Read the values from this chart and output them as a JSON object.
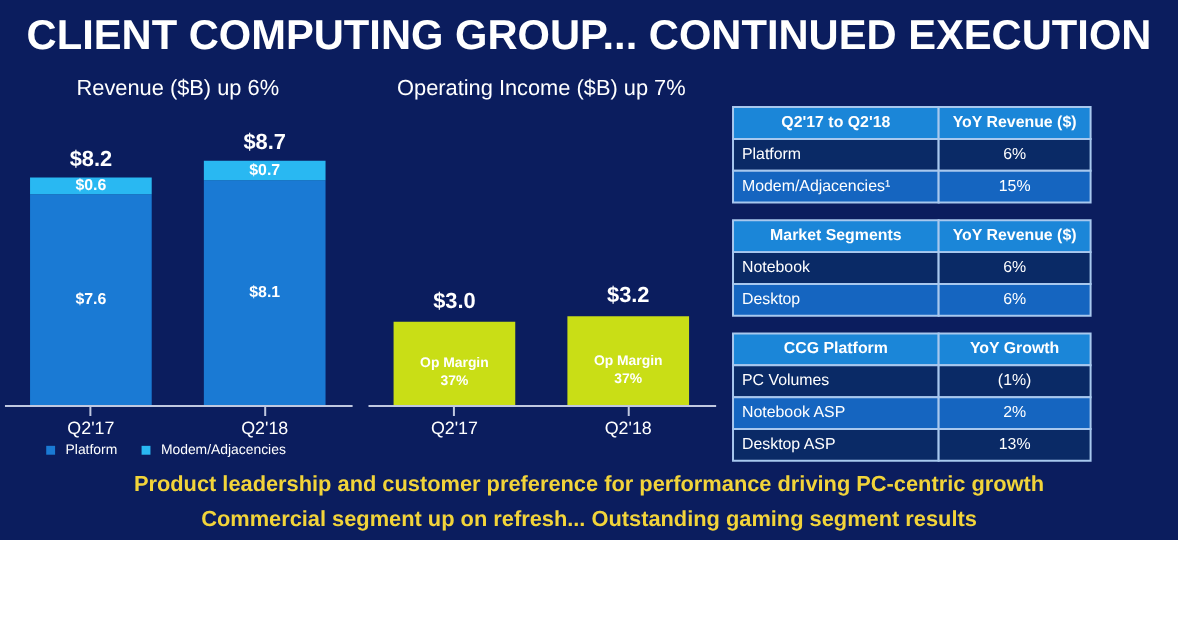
{
  "chart_data": [
    {
      "type": "other",
      "title": "CLIENT COMPUTING GROUP... CONTINUED EXECUTION",
      "annotations": [
        "Product leadership and customer preference for performance driving PC-centric growth",
        "Commercial segment up on refresh... Outstanding gaming segment results"
      ]
    },
    {
      "type": "bar",
      "title": "Revenue ($B) up 6%",
      "categories": [
        "Q2'17",
        "Q2'18"
      ],
      "stacked": true,
      "legend": "bottom",
      "totals": [
        "$8.2",
        "$8.7"
      ],
      "series": [
        {
          "name": "Platform",
          "color": "#1a7ad4",
          "values": [
            7.6,
            8.1
          ],
          "value_labels": [
            "$7.6",
            "$8.1"
          ]
        },
        {
          "name": "Modem/Adjacencies",
          "color": "#29b8f2",
          "values": [
            0.6,
            0.7
          ],
          "value_labels": [
            "$0.6",
            "$0.7"
          ]
        }
      ]
    },
    {
      "type": "bar",
      "title": "Operating Income ($B) up 7%",
      "categories": [
        "Q2'17",
        "Q2'18"
      ],
      "color": "#c9de16",
      "values": [
        3.0,
        3.2
      ],
      "value_labels": [
        "$3.0",
        "$3.2"
      ],
      "annotations": [
        "Op Margin\n37%",
        "Op Margin\n37%"
      ]
    },
    {
      "type": "other",
      "annotations": [
        "Q2'17 to Q2'18",
        "YoY Revenue ($)",
        "Platform",
        "6%",
        "Modem/Adjacencies¹",
        "15%"
      ]
    },
    {
      "type": "other",
      "annotations": [
        "Market Segments",
        "YoY Revenue ($)",
        "Notebook",
        "6%",
        "Desktop",
        "6%"
      ]
    },
    {
      "type": "other",
      "annotations": [
        "CCG Platform",
        "YoY Growth",
        "PC Volumes",
        "(1%)",
        "Notebook ASP",
        "2%",
        "Desktop ASP",
        "13%"
      ]
    }
  ]
}
